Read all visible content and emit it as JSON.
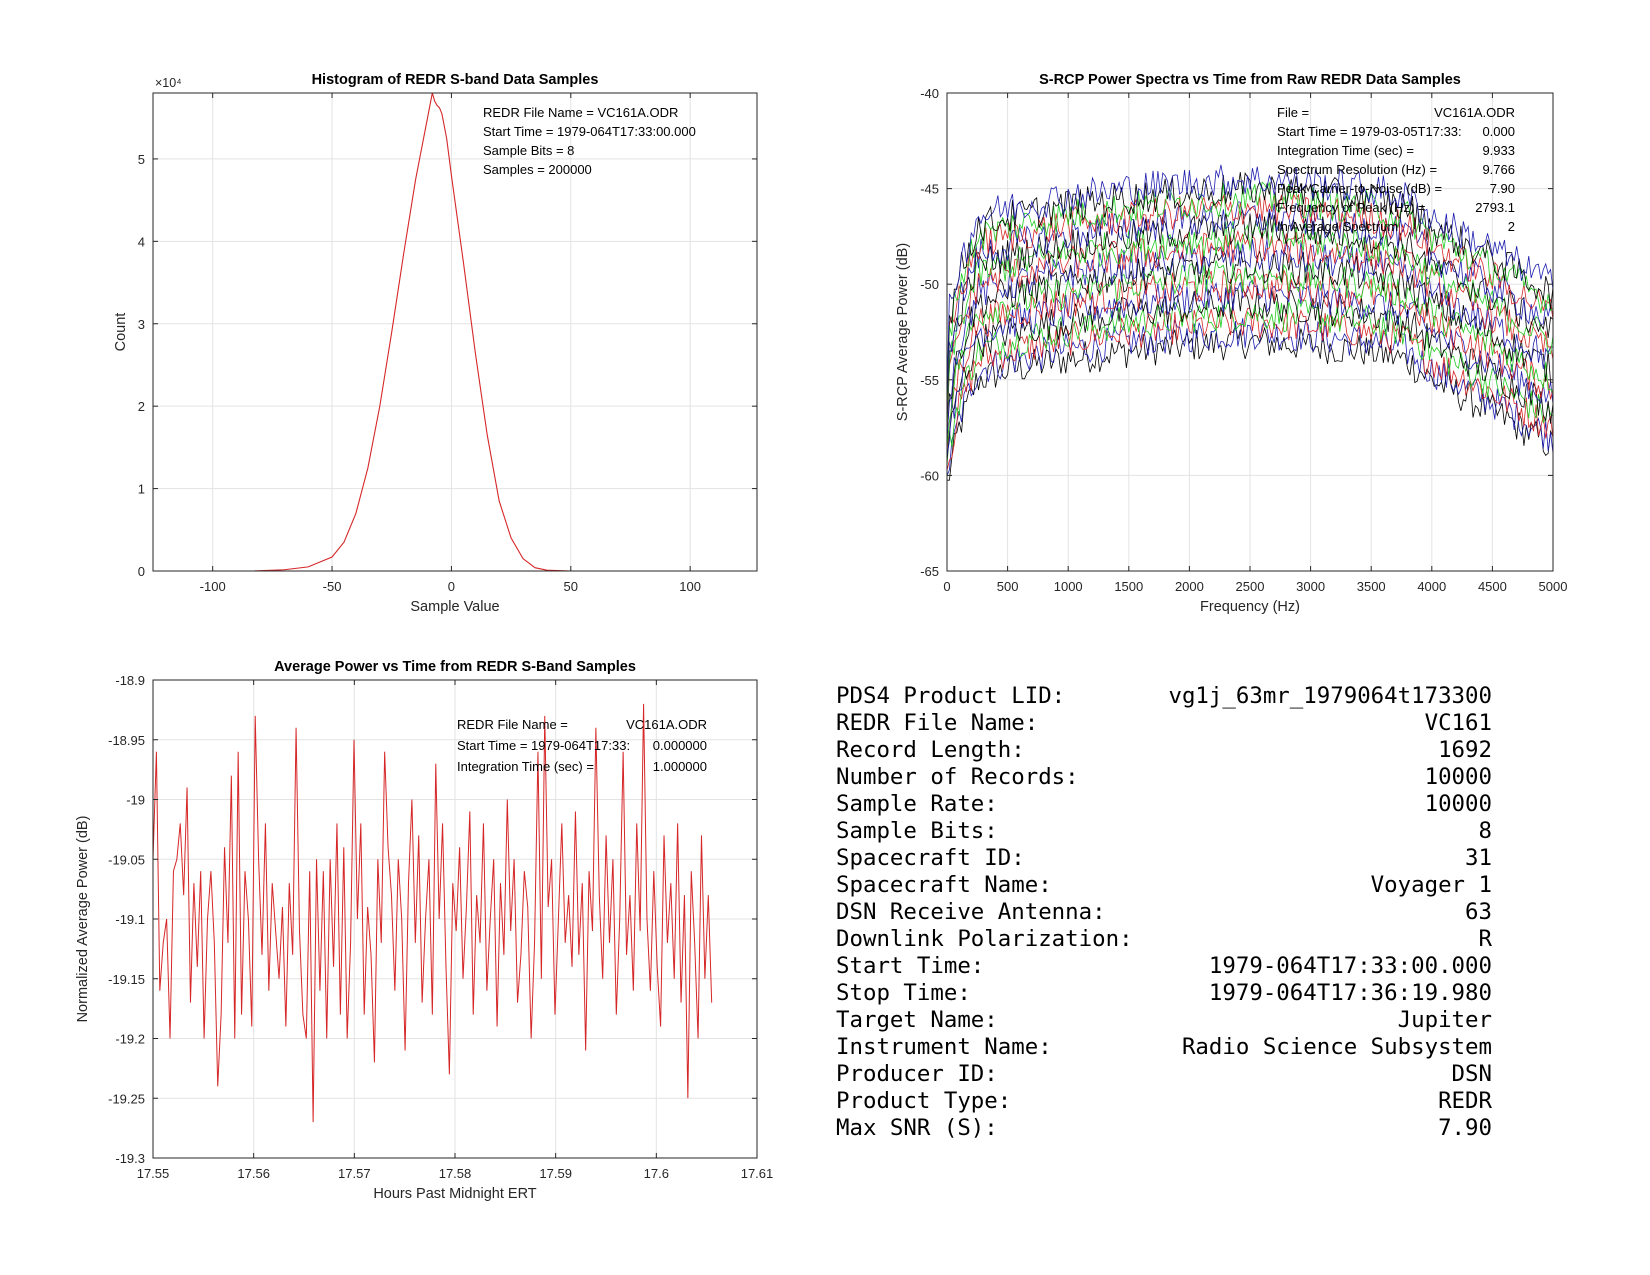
{
  "chart_data": [
    {
      "type": "line",
      "title": "Histogram of REDR S-band Data Samples",
      "xlabel": "Sample Value",
      "ylabel": "Count",
      "y_exponent_label": "×10⁴",
      "xlim": [
        -125,
        128
      ],
      "ylim": [
        0,
        58000
      ],
      "grid": true,
      "x_ticks": [
        -100,
        -50,
        0,
        50,
        100
      ],
      "y_ticks": [
        0,
        10000,
        20000,
        30000,
        40000,
        50000
      ],
      "y_tick_labels": [
        "0",
        "1",
        "2",
        "3",
        "4",
        "5"
      ],
      "line_color": "#d62728",
      "annotations": [
        "REDR File Name = VC161A.ODR",
        "Start Time = 1979-064T17:33:00.000",
        "Sample Bits = 8",
        "Samples = 200000"
      ],
      "series": [
        {
          "x": [
            -83,
            -70,
            -60,
            -50,
            -45,
            -40,
            -35,
            -30,
            -25,
            -20,
            -15,
            -12,
            -10,
            -9,
            -8,
            -7,
            -6,
            -5,
            -4,
            -2,
            0,
            5,
            10,
            15,
            20,
            25,
            30,
            35,
            40,
            50,
            62
          ],
          "values": [
            0,
            150,
            500,
            1700,
            3500,
            7000,
            12500,
            20000,
            29000,
            38500,
            47500,
            52000,
            55000,
            56500,
            58000,
            57000,
            56500,
            56200,
            55500,
            52500,
            48000,
            37500,
            26500,
            16500,
            8500,
            4000,
            1500,
            400,
            100,
            0,
            0
          ]
        }
      ]
    },
    {
      "type": "line",
      "title": "S-RCP Power Spectra vs Time from Raw REDR Data Samples",
      "xlabel": "Frequency (Hz)",
      "ylabel": "S-RCP Average Power (dB)",
      "xlim": [
        0,
        5000
      ],
      "ylim": [
        -65,
        -40
      ],
      "grid": true,
      "x_ticks": [
        0,
        500,
        1000,
        1500,
        2000,
        2500,
        3000,
        3500,
        4000,
        4500,
        5000
      ],
      "y_ticks": [
        -65,
        -60,
        -55,
        -50,
        -45,
        -40
      ],
      "series_colors": [
        "#000000",
        "#1f1fb0",
        "#d62728",
        "#22cc22"
      ],
      "envelope_x": [
        0,
        100,
        250,
        500,
        1000,
        1500,
        2000,
        2500,
        3000,
        3500,
        3800,
        4000,
        4300,
        4600,
        5000
      ],
      "envelope_values": [
        -57,
        -54,
        -51.5,
        -51,
        -50.4,
        -50,
        -49.7,
        -49.5,
        -49.7,
        -50,
        -50.5,
        -51.5,
        -52.5,
        -53.5,
        -55
      ],
      "series_offsets_db": [
        -3.5,
        -3,
        -2.5,
        -2,
        -1.5,
        -1,
        -0.5,
        0,
        0.5,
        1,
        1.5,
        2,
        2.5,
        3,
        3.5,
        4,
        4.5,
        5
      ],
      "annotations": [
        {
          "label": "File =",
          "value": "VC161A.ODR"
        },
        {
          "label": "Start Time = 1979-03-05T17:33:",
          "value": "0.000"
        },
        {
          "label": "Integration Time (sec) =",
          "value": "9.933"
        },
        {
          "label": "Spectrum Resolution (Hz) =",
          "value": "9.766"
        },
        {
          "label": "Peak Carrier-to-Noise (dB) =",
          "value": "7.90"
        },
        {
          "label": "Frequency of Peak (Hz) =",
          "value": "2793.1"
        },
        {
          "label": "In Average Spectrum",
          "value": "2"
        }
      ]
    },
    {
      "type": "line",
      "title": "Average Power vs Time from REDR S-Band Samples",
      "xlabel": "Hours Past Midnight ERT",
      "ylabel": "Normalized Average Power (dB)",
      "xlim": [
        17.55,
        17.61
      ],
      "ylim": [
        -19.3,
        -18.9
      ],
      "grid": true,
      "x_ticks": [
        17.55,
        17.56,
        17.57,
        17.58,
        17.59,
        17.6,
        17.61
      ],
      "y_ticks": [
        -19.3,
        -19.25,
        -19.2,
        -19.15,
        -19.1,
        -19.05,
        -19,
        -18.95,
        -18.9
      ],
      "line_color": "#d62728",
      "x_start": 17.55,
      "x_end": 17.6055,
      "annotations": [
        {
          "label": "REDR File Name =",
          "value": "VC161A.ODR"
        },
        {
          "label": "Start Time = 1979-064T17:33:",
          "value": "0.000000"
        },
        {
          "label": "Integration Time (sec) =",
          "value": "1.000000"
        }
      ],
      "values": [
        -19.05,
        -18.96,
        -19.16,
        -19.12,
        -19.1,
        -19.2,
        -19.06,
        -19.05,
        -19.02,
        -19.08,
        -18.99,
        -19.17,
        -19.07,
        -19.14,
        -19.06,
        -19.2,
        -19.1,
        -19.06,
        -19.12,
        -19.24,
        -19.18,
        -19.04,
        -19.12,
        -18.98,
        -19.2,
        -18.96,
        -19.18,
        -19.06,
        -19.1,
        -19.19,
        -18.93,
        -19.05,
        -19.13,
        -19.02,
        -19.16,
        -19.07,
        -19.11,
        -19.15,
        -19.09,
        -19.19,
        -19.07,
        -19.13,
        -18.94,
        -19.11,
        -19.18,
        -19.2,
        -19.06,
        -19.27,
        -19.05,
        -19.16,
        -19.06,
        -19.2,
        -19.05,
        -19.14,
        -19.02,
        -19.18,
        -19.04,
        -19.2,
        -19.12,
        -18.95,
        -19.1,
        -19.02,
        -19.18,
        -19.09,
        -19.13,
        -19.22,
        -19.05,
        -19.12,
        -18.96,
        -19.04,
        -19.08,
        -19.16,
        -19.05,
        -19.1,
        -19.21,
        -19.07,
        -19.0,
        -19.12,
        -19.03,
        -19.17,
        -19.1,
        -19.05,
        -19.18,
        -18.97,
        -19.1,
        -19.02,
        -19.14,
        -19.23,
        -19.07,
        -19.11,
        -19.04,
        -19.15,
        -19.09,
        -19.01,
        -19.18,
        -19.08,
        -19.12,
        -19.02,
        -19.16,
        -19.1,
        -19.05,
        -19.19,
        -19.07,
        -19.13,
        -19.0,
        -19.11,
        -19.05,
        -19.17,
        -19.13,
        -19.06,
        -19.09,
        -19.2,
        -19.12,
        -18.96,
        -19.15,
        -18.93,
        -19.09,
        -19.05,
        -19.18,
        -19.1,
        -19.02,
        -19.12,
        -19.08,
        -19.14,
        -19.01,
        -19.13,
        -19.07,
        -19.21,
        -19.06,
        -19.11,
        -18.94,
        -19.08,
        -19.15,
        -19.03,
        -19.12,
        -19.05,
        -19.18,
        -19.1,
        -18.96,
        -19.13,
        -19.08,
        -19.16,
        -19.02,
        -19.11,
        -18.92,
        -19.1,
        -19.16,
        -19.06,
        -19.14,
        -19.19,
        -19.03,
        -19.12,
        -19.07,
        -19.15,
        -19.02,
        -19.17,
        -19.08,
        -19.25,
        -19.06,
        -19.12,
        -19.2,
        -19.03,
        -19.15,
        -19.08,
        -19.17
      ]
    }
  ],
  "info_table": [
    {
      "label": "PDS4 Product LID:",
      "value": "vg1j_63mr_1979064t173300"
    },
    {
      "label": "REDR File Name:",
      "value": "VC161"
    },
    {
      "label": "Record Length:",
      "value": "1692"
    },
    {
      "label": "Number of Records:",
      "value": "10000"
    },
    {
      "label": "Sample Rate:",
      "value": "10000"
    },
    {
      "label": "Sample Bits:",
      "value": "8"
    },
    {
      "label": "Spacecraft ID:",
      "value": "31"
    },
    {
      "label": "Spacecraft Name:",
      "value": "Voyager 1"
    },
    {
      "label": "DSN Receive Antenna:",
      "value": "63"
    },
    {
      "label": "Downlink Polarization:",
      "value": "R"
    },
    {
      "label": "Start Time:",
      "value": "1979-064T17:33:00.000"
    },
    {
      "label": "Stop Time:",
      "value": "1979-064T17:36:19.980"
    },
    {
      "label": "Target Name:",
      "value": "Jupiter"
    },
    {
      "label": "Instrument Name:",
      "value": "Radio Science Subsystem"
    },
    {
      "label": "Producer ID:",
      "value": "DSN"
    },
    {
      "label": "Product Type:",
      "value": "REDR"
    },
    {
      "label": "Max SNR (S):",
      "value": "7.90"
    }
  ]
}
